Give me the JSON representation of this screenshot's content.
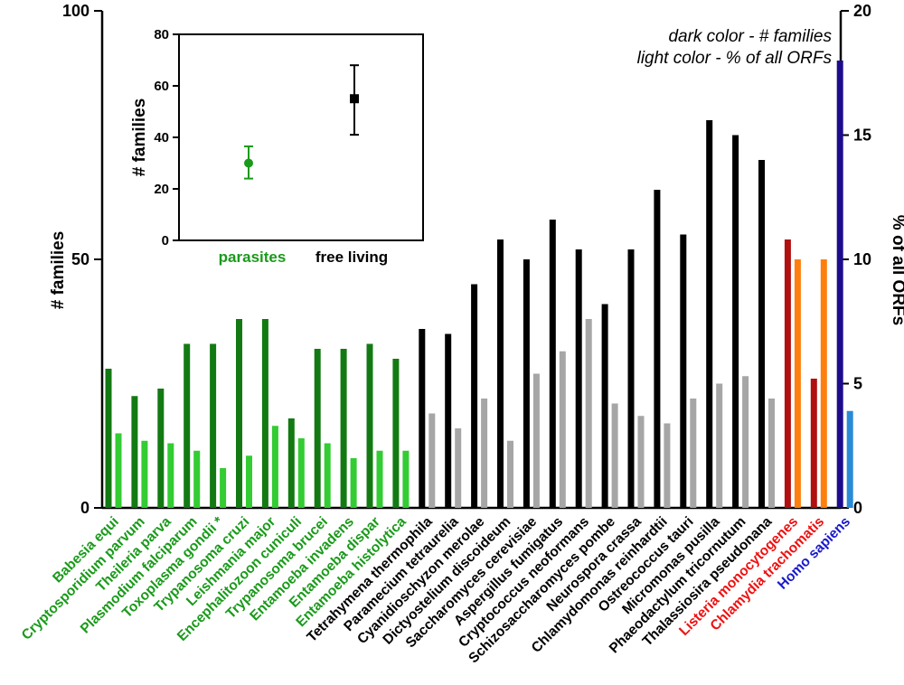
{
  "chart_data": [
    {
      "type": "bar",
      "title": "",
      "ylabel": "# families",
      "y2label": "% of all ORFs",
      "ylim": [
        0,
        100
      ],
      "yticks": [
        0,
        50,
        100
      ],
      "y2lim": [
        0,
        20
      ],
      "y2ticks": [
        0,
        5,
        10,
        15,
        20
      ],
      "legend": {
        "placement": "top-right",
        "lines": [
          "dark color - # families",
          "light color - % of all ORFs"
        ]
      },
      "categories": [
        "Babesia equi",
        "Cryptosporidium parvum",
        "Theileria parva",
        "Plasmodium falciparum",
        "Toxoplasma gondii *",
        "Trypanosoma cruzi",
        "Leishmania major",
        "Encephalitozoon cuniculi",
        "Trypanosoma brucei",
        "Entamoeba invadens",
        "Entamoeba dispar",
        "Entamoeba histolytica",
        "Tetrahymena thermophila",
        "Paramecium tetraurelia",
        "Cyanidioschyzon merolae",
        "Dictyostelium discoideum",
        "Saccharomyces cerevisiae",
        "Aspergillus fumigatus",
        "Cryptococcus neoformans",
        "Schizosaccharomyces pombe",
        "Neurospora crassa",
        "Chlamydomonas reinhardtii",
        "Ostreococcus tauri",
        "Micromonas pusilla",
        "Phaeodactylum tricornutum",
        "Thalassiosira pseudonana",
        "Listeria monocytogenes",
        "Chlamydia trachomatis",
        "Homo sapiens"
      ],
      "category_colors": [
        "#1a9a1a",
        "#1a9a1a",
        "#1a9a1a",
        "#1a9a1a",
        "#1a9a1a",
        "#1a9a1a",
        "#1a9a1a",
        "#1a9a1a",
        "#1a9a1a",
        "#1a9a1a",
        "#1a9a1a",
        "#1a9a1a",
        "#000000",
        "#000000",
        "#000000",
        "#000000",
        "#000000",
        "#000000",
        "#000000",
        "#000000",
        "#000000",
        "#000000",
        "#000000",
        "#000000",
        "#000000",
        "#000000",
        "#ee1111",
        "#ee1111",
        "#1a1acc"
      ],
      "series": [
        {
          "values": [
            28,
            22.5,
            24,
            33,
            33,
            38,
            38,
            18,
            32,
            32,
            33,
            30,
            36,
            35,
            45,
            54,
            50,
            58,
            52,
            41,
            52,
            64,
            55,
            78,
            75,
            70,
            54,
            26,
            90
          ],
          "colors": [
            "#137a13",
            "#137a13",
            "#137a13",
            "#137a13",
            "#137a13",
            "#137a13",
            "#137a13",
            "#137a13",
            "#137a13",
            "#137a13",
            "#137a13",
            "#137a13",
            "#000000",
            "#000000",
            "#000000",
            "#000000",
            "#000000",
            "#000000",
            "#000000",
            "#000000",
            "#000000",
            "#000000",
            "#000000",
            "#000000",
            "#000000",
            "#000000",
            "#b01010",
            "#b01010",
            "#1c0c8c"
          ]
        },
        {
          "axis": "right",
          "values": [
            3,
            2.7,
            2.6,
            2.3,
            1.6,
            2.1,
            3.3,
            2.8,
            2.6,
            2.0,
            2.3,
            2.3,
            3.8,
            3.2,
            4.4,
            2.7,
            5.4,
            6.3,
            7.6,
            4.2,
            3.7,
            3.4,
            4.4,
            5.0,
            5.3,
            4.4,
            10.0,
            10.0,
            3.9
          ],
          "colors": [
            "#33cc33",
            "#33cc33",
            "#33cc33",
            "#33cc33",
            "#33cc33",
            "#33cc33",
            "#33cc33",
            "#33cc33",
            "#33cc33",
            "#33cc33",
            "#33cc33",
            "#33cc33",
            "#a6a6a6",
            "#a6a6a6",
            "#a6a6a6",
            "#a6a6a6",
            "#a6a6a6",
            "#a6a6a6",
            "#a6a6a6",
            "#a6a6a6",
            "#a6a6a6",
            "#a6a6a6",
            "#a6a6a6",
            "#a6a6a6",
            "#a6a6a6",
            "#a6a6a6",
            "#ff7f0e",
            "#ff7f0e",
            "#2a8ad6"
          ]
        }
      ]
    },
    {
      "type": "scatter",
      "title": "",
      "ylabel": "# families",
      "ylim": [
        0,
        80
      ],
      "yticks": [
        0,
        20,
        40,
        60,
        80
      ],
      "categories": [
        "parasites",
        "free living"
      ],
      "category_colors": [
        "#1a9a1a",
        "#000000"
      ],
      "values": [
        30,
        55
      ],
      "error": [
        [
          24,
          36.5
        ],
        [
          41,
          68
        ]
      ],
      "marker_colors": [
        "#1a9a1a",
        "#000000"
      ]
    }
  ]
}
